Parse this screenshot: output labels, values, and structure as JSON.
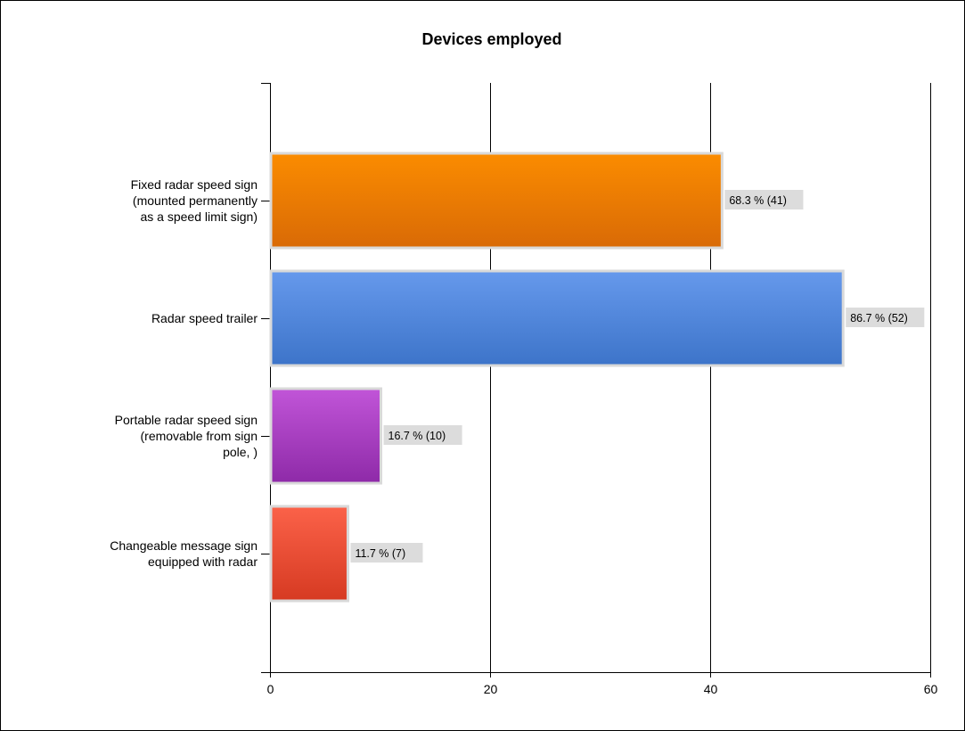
{
  "chart_data": {
    "type": "bar",
    "orientation": "horizontal",
    "title": "Devices employed",
    "xlabel": "",
    "ylabel": "",
    "categories": [
      [
        "Fixed radar speed sign",
        "(mounted permanently",
        "as a speed limit sign)"
      ],
      [
        "Radar speed trailer"
      ],
      [
        "Portable radar speed sign",
        "(removable from sign",
        "pole, )"
      ],
      [
        "Changeable message sign",
        "equipped with radar"
      ]
    ],
    "values": [
      41,
      52,
      10,
      7
    ],
    "data_labels": [
      "68.3 % (41)",
      "86.7 % (52)",
      "16.7 % (10)",
      "11.7 % (7)"
    ],
    "colors": [
      [
        "#fb8c00",
        "#d96a06"
      ],
      [
        "#6699ec",
        "#3d74c9"
      ],
      [
        "#c155d8",
        "#8e2aa8"
      ],
      [
        "#fb6249",
        "#d63a22"
      ]
    ],
    "xlim": [
      0,
      60
    ],
    "xticks": [
      0,
      20,
      40,
      60
    ],
    "grid": true,
    "legend": "none"
  }
}
